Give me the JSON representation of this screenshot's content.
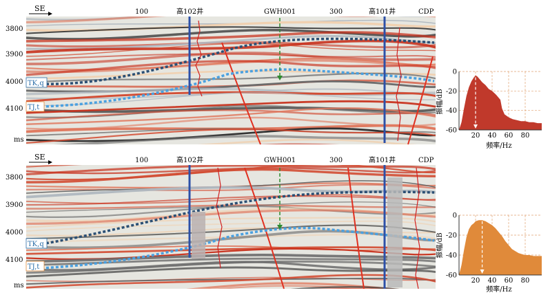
{
  "panels": [
    {
      "direction": "SE",
      "cdp_label": "CDP",
      "cdp_ticks": [
        "100",
        "300"
      ],
      "wells": [
        {
          "name": "高102井",
          "type": "well"
        },
        {
          "name": "GWH001",
          "type": "projected-well"
        },
        {
          "name": "高101井",
          "type": "well"
        }
      ],
      "time_axis": {
        "labels": [
          "3800",
          "3900",
          "4000",
          "4100"
        ],
        "unit": "ms"
      },
      "horizons": [
        {
          "name": "TK,q",
          "color": "#2b6ea8"
        },
        {
          "name": "TJ,t",
          "color": "#5aa8e8"
        }
      ],
      "spectrum_color": "#c0392b"
    },
    {
      "direction": "SE",
      "cdp_label": "CDP",
      "cdp_ticks": [
        "100",
        "300"
      ],
      "wells": [
        {
          "name": "高102井",
          "type": "well"
        },
        {
          "name": "GWH001",
          "type": "projected-well"
        },
        {
          "name": "高101井",
          "type": "well"
        }
      ],
      "time_axis": {
        "labels": [
          "3800",
          "3900",
          "4000",
          "4100"
        ],
        "unit": "ms"
      },
      "horizons": [
        {
          "name": "TK,q",
          "color": "#2b6ea8"
        },
        {
          "name": "TJ,t",
          "color": "#5aa8e8"
        }
      ],
      "spectrum_color": "#e08a3a"
    }
  ],
  "chart_data": [
    {
      "type": "area",
      "ylabel": "振幅/dB",
      "xlabel": "频率/Hz",
      "x_ticks": [
        "20",
        "40",
        "60",
        "80"
      ],
      "y_ticks": [
        "0",
        "-20",
        "-40",
        "-60"
      ],
      "xlim": [
        0,
        100
      ],
      "ylim": [
        -60,
        0
      ],
      "grid": true,
      "dominant_frequency": 20,
      "series": [
        {
          "color": "#c0392b",
          "x": [
            0,
            3,
            6,
            9,
            12,
            15,
            18,
            20,
            22,
            25,
            28,
            32,
            36,
            40,
            45,
            50,
            52,
            55,
            60,
            65,
            70,
            75,
            80,
            85,
            90,
            95,
            100
          ],
          "y": [
            -60,
            -52,
            -38,
            -25,
            -16,
            -10,
            -6,
            -4,
            -5,
            -8,
            -11,
            -14,
            -18,
            -20,
            -24,
            -29,
            -38,
            -44,
            -47,
            -49,
            -50,
            -51,
            -51,
            -52,
            -52,
            -53,
            -53
          ]
        }
      ]
    },
    {
      "type": "area",
      "ylabel": "振幅/dB",
      "xlabel": "频率/Hz",
      "x_ticks": [
        "20",
        "40",
        "60",
        "80"
      ],
      "y_ticks": [
        "0",
        "-20",
        "-40",
        "-60"
      ],
      "xlim": [
        0,
        100
      ],
      "ylim": [
        -60,
        0
      ],
      "grid": true,
      "dominant_frequency": 28,
      "series": [
        {
          "color": "#e08a3a",
          "x": [
            0,
            3,
            6,
            9,
            12,
            15,
            18,
            20,
            24,
            28,
            32,
            36,
            40,
            44,
            48,
            52,
            56,
            60,
            64,
            68,
            72,
            76,
            80,
            85,
            90,
            95,
            100
          ],
          "y": [
            -60,
            -50,
            -35,
            -22,
            -14,
            -10,
            -8,
            -6,
            -5,
            -5,
            -6,
            -8,
            -10,
            -13,
            -17,
            -21,
            -26,
            -30,
            -34,
            -36,
            -38,
            -39,
            -40,
            -40,
            -41,
            -41,
            -41
          ]
        }
      ]
    }
  ]
}
